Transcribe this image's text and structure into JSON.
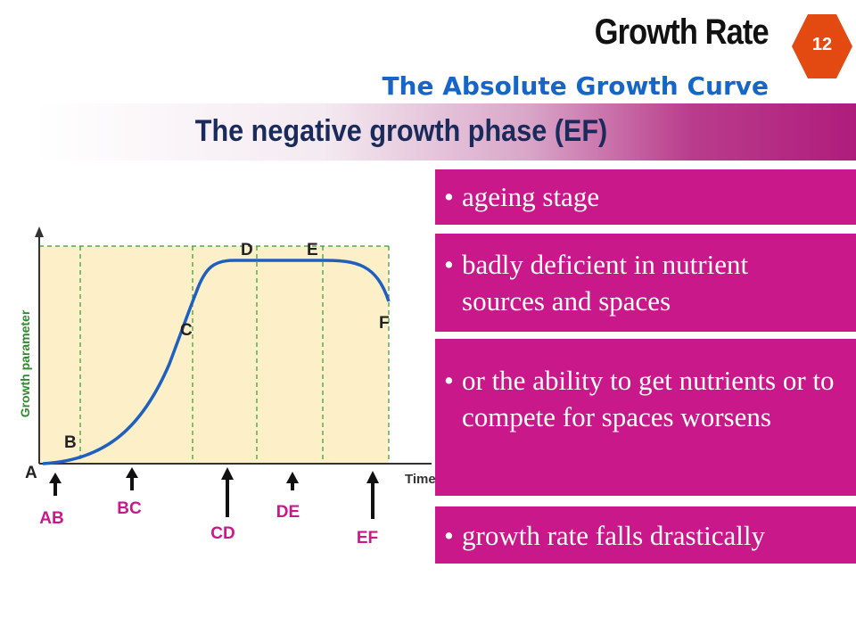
{
  "header": {
    "title": "Growth Rate",
    "subtitle": "The Absolute Growth Curve",
    "slide_number": "12"
  },
  "banner": {
    "text": "The negative growth phase (EF)"
  },
  "bullets": [
    {
      "text": "ageing stage"
    },
    {
      "text": "badly deficient in nutrient sources and spaces"
    },
    {
      "text": "or the ability to get nutrients or to compete for spaces worsens"
    },
    {
      "text": "growth rate falls drastically"
    }
  ],
  "diagram": {
    "y_axis_label": "Growth parameter",
    "x_axis_label": "Time",
    "points": [
      "A",
      "B",
      "C",
      "D",
      "E",
      "F"
    ],
    "phases": [
      "AB",
      "BC",
      "CD",
      "DE",
      "EF"
    ]
  },
  "colors": {
    "accent": "#c8188a",
    "title_blue": "#1566c8",
    "plot_fill": "#fdf0c8",
    "curve": "#1e5fc0",
    "grid": "#2e9a3a",
    "phase_label": "#c8188a",
    "point_label": "#222222"
  }
}
